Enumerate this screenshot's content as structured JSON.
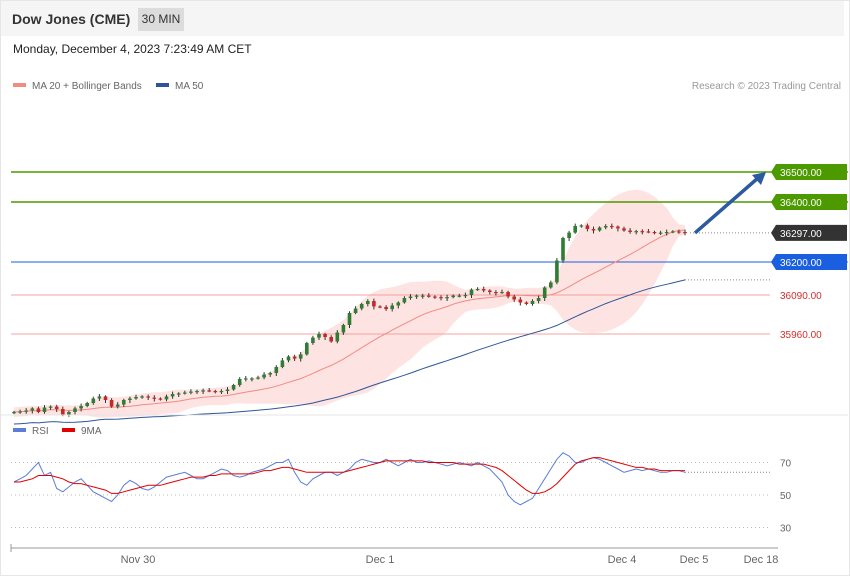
{
  "header": {
    "title": "Dow Jones (CME)",
    "timeframe": "30 MIN"
  },
  "datetime": "Monday, December 4, 2023 7:23:49 AM CET",
  "legend": {
    "ma20": {
      "label": "MA 20 + Bollinger Bands",
      "color": "#f28b82"
    },
    "ma50": {
      "label": "MA 50",
      "color": "#2f5597"
    }
  },
  "credit": "Research © 2023 Trading Central",
  "rsi_legend": {
    "rsi": {
      "label": "RSI",
      "color": "#5b7fd6"
    },
    "ma": {
      "label": "9MA",
      "color": "#e00000"
    }
  },
  "colors": {
    "up": "#2e7d32",
    "down": "#c62828",
    "target": "#4c9a00",
    "support_line": "#f4a0a0",
    "pivot": "#1a5fe0",
    "arrow": "#2c5aa0"
  },
  "chart_data": [
    {
      "type": "candlestick",
      "title": "Dow Jones (CME)",
      "timeframe": "30 MIN",
      "x_labels": [
        "Nov 30",
        "Dec 1",
        "Dec 4",
        "Dec 5",
        "Dec 18"
      ],
      "ylim": [
        35700,
        36560
      ],
      "levels": [
        {
          "value": 36500,
          "label": "36500.00",
          "kind": "target"
        },
        {
          "value": 36400,
          "label": "36400.00",
          "kind": "target"
        },
        {
          "value": 36297,
          "label": "36297.00",
          "kind": "last"
        },
        {
          "value": 36200,
          "label": "36200.00",
          "kind": "pivot"
        },
        {
          "value": 36090,
          "label": "36090.00",
          "kind": "support"
        },
        {
          "value": 35960,
          "label": "35960.00",
          "kind": "support"
        }
      ],
      "close": [
        35700,
        35702,
        35705,
        35712,
        35700,
        35715,
        35718,
        35710,
        35690,
        35700,
        35712,
        35720,
        35730,
        35745,
        35752,
        35740,
        35718,
        35725,
        35740,
        35745,
        35750,
        35752,
        35748,
        35745,
        35742,
        35752,
        35760,
        35762,
        35765,
        35768,
        35770,
        35772,
        35770,
        35768,
        35770,
        35775,
        35790,
        35810,
        35812,
        35812,
        35815,
        35825,
        35830,
        35850,
        35872,
        35885,
        35878,
        35892,
        35930,
        35948,
        35960,
        35950,
        35935,
        35965,
        35990,
        36030,
        36045,
        36060,
        36070,
        36052,
        36050,
        36043,
        36055,
        36065,
        36080,
        36085,
        36088,
        36088,
        36085,
        36083,
        36080,
        36083,
        36088,
        36088,
        36090,
        36108,
        36110,
        36105,
        36100,
        36098,
        36100,
        36085,
        36075,
        36065,
        36060,
        36070,
        36080,
        36115,
        36132,
        36205,
        36280,
        36298,
        36320,
        36322,
        36310,
        36305,
        36315,
        36320,
        36318,
        36312,
        36305,
        36300,
        36303,
        36302,
        36300,
        36298,
        36298,
        36300,
        36302,
        36300,
        36297
      ],
      "rsi": {
        "ylim": [
          20,
          80
        ],
        "levels": [
          70,
          50,
          30
        ],
        "rsi": [
          58,
          60,
          62,
          66,
          70,
          62,
          64,
          54,
          52,
          55,
          58,
          60,
          56,
          52,
          50,
          48,
          46,
          50,
          56,
          59,
          57,
          54,
          53,
          55,
          58,
          61,
          62,
          63,
          64,
          62,
          60,
          60,
          62,
          64,
          66,
          65,
          62,
          61,
          62,
          64,
          65,
          66,
          68,
          70,
          70,
          72,
          64,
          58,
          56,
          60,
          62,
          64,
          64,
          62,
          64,
          66,
          70,
          72,
          71,
          70,
          70,
          72,
          70,
          68,
          70,
          72,
          70,
          70,
          71,
          70,
          69,
          68,
          69,
          70,
          69,
          68,
          70,
          68,
          66,
          62,
          58,
          50,
          46,
          44,
          46,
          48,
          54,
          60,
          66,
          72,
          76,
          74,
          70,
          70,
          72,
          73,
          72,
          70,
          68,
          66,
          64,
          65,
          66,
          65,
          66,
          65,
          64,
          64,
          65,
          65,
          64
        ],
        "ma": [
          58,
          58,
          59,
          60,
          62,
          62,
          62,
          61,
          60,
          58,
          57,
          57,
          56,
          55,
          54,
          53,
          51,
          51,
          52,
          53,
          54,
          55,
          56,
          56,
          56,
          57,
          58,
          59,
          60,
          61,
          61,
          61,
          62,
          62,
          63,
          63,
          63,
          63,
          63,
          63,
          64,
          65,
          65,
          66,
          67,
          67,
          66,
          65,
          64,
          64,
          64,
          64,
          64,
          64,
          64,
          65,
          66,
          67,
          68,
          69,
          70,
          71,
          71,
          71,
          71,
          71,
          71,
          71,
          70,
          70,
          70,
          70,
          70,
          69,
          69,
          69,
          69,
          69,
          68,
          67,
          65,
          62,
          59,
          56,
          53,
          51,
          51,
          52,
          54,
          57,
          61,
          65,
          69,
          71,
          72,
          73,
          73,
          72,
          71,
          70,
          69,
          68,
          67,
          67,
          66,
          66,
          65,
          65,
          65,
          65,
          65
        ]
      }
    }
  ]
}
